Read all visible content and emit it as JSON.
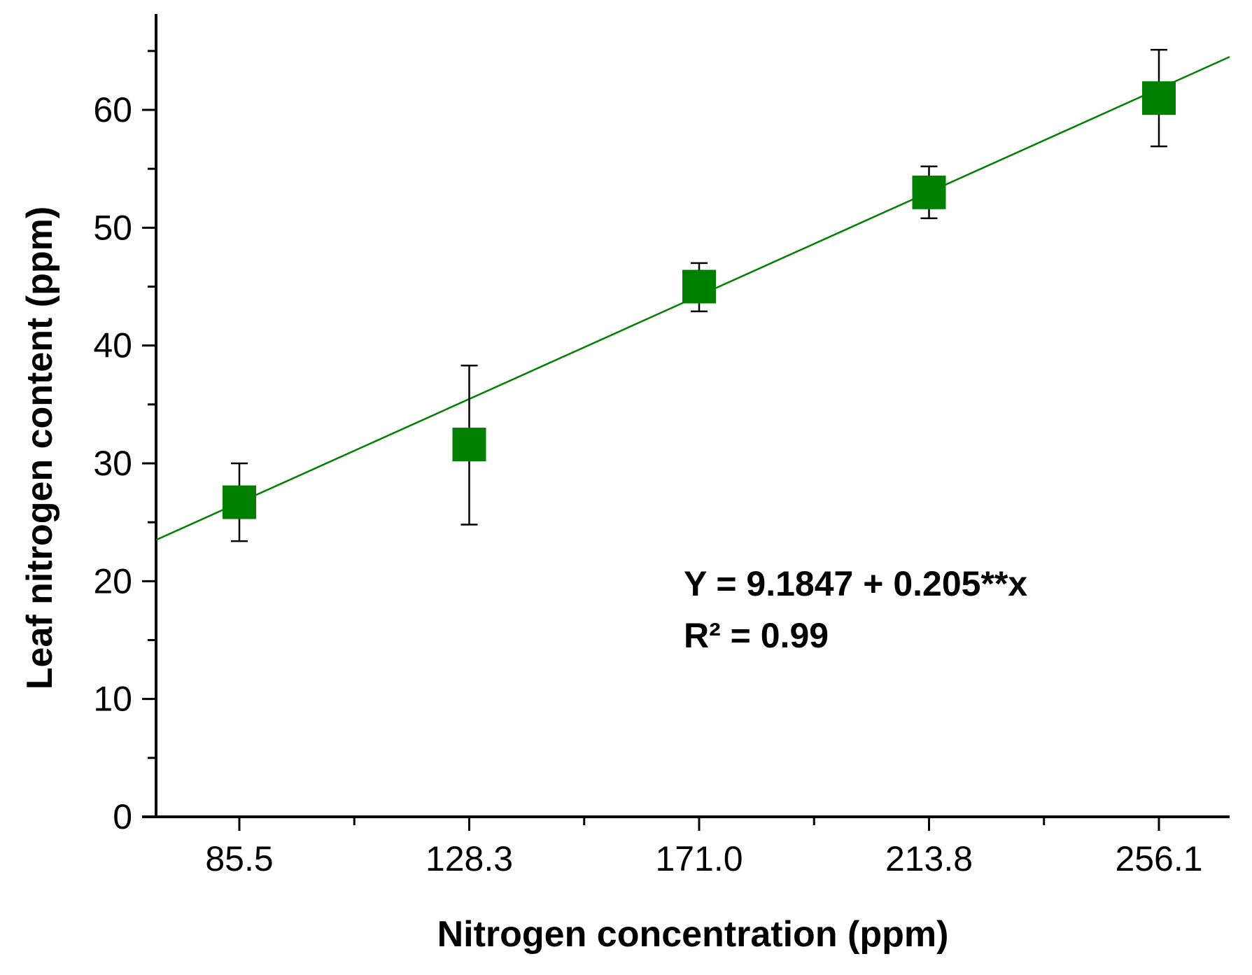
{
  "chart_data": {
    "type": "scatter",
    "xlabel": "Nitrogen concentration (ppm)",
    "ylabel": "Leaf nitrogen content (ppm)",
    "x_tick_labels": [
      "85.5",
      "128.3",
      "171.0",
      "213.8",
      "256.1"
    ],
    "y_tick_labels": [
      "0",
      "10",
      "20",
      "30",
      "40",
      "50",
      "60"
    ],
    "ylim": [
      0,
      66.5
    ],
    "series": [
      {
        "name": "Leaf nitrogen content",
        "color": "#008000",
        "marker": "square",
        "points": [
          {
            "x_index": 0,
            "y": 26.7,
            "err_low": 23.4,
            "err_high": 30.0
          },
          {
            "x_index": 1,
            "y": 31.6,
            "err_low": 24.8,
            "err_high": 38.3
          },
          {
            "x_index": 2,
            "y": 45.0,
            "err_low": 42.9,
            "err_high": 47.0
          },
          {
            "x_index": 3,
            "y": 53.0,
            "err_low": 50.8,
            "err_high": 55.2
          },
          {
            "x_index": 4,
            "y": 61.0,
            "err_low": 56.9,
            "err_high": 65.1
          }
        ]
      }
    ],
    "fit_line": {
      "color": "#008000",
      "y_at_left_edge": 23.5,
      "y_at_right_edge": 64.5
    },
    "annotations": [
      "Y = 9.1847 + 0.205**x",
      "R² = 0.99"
    ]
  }
}
